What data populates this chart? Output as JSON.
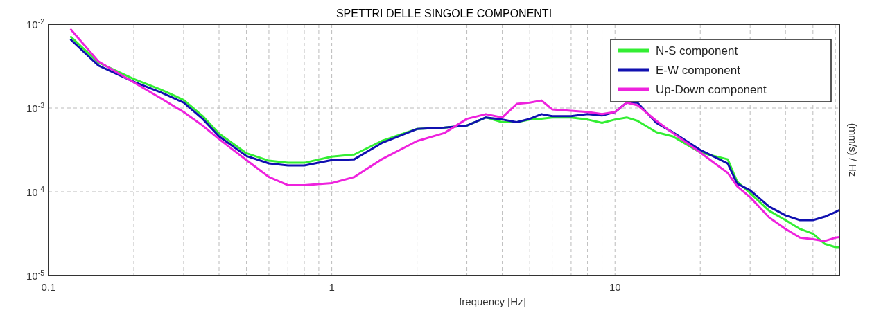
{
  "chart_data": {
    "type": "line",
    "title": "SPETTRI DELLE SINGOLE COMPONENTI",
    "xlabel": "frequency [Hz]",
    "y2label": "(mm/s) / Hz",
    "log": "xy",
    "grid": true,
    "legend": "top right",
    "line_style": "solid",
    "marker": "none",
    "x": [
      0.12,
      0.15,
      0.2,
      0.25,
      0.3,
      0.35,
      0.4,
      0.5,
      0.6,
      0.7,
      0.8,
      1,
      1.2,
      1.5,
      2,
      2.5,
      3,
      3.5,
      4,
      4.5,
      5,
      5.5,
      6,
      7,
      8,
      9,
      10,
      11,
      12,
      14,
      16,
      20,
      25,
      27,
      30,
      35,
      40,
      45,
      50,
      55,
      60,
      62
    ],
    "xlim": [
      0.1,
      62
    ],
    "xticks": [
      0.1,
      {
        "value": 0.2,
        "label": null
      },
      {
        "value": 0.3,
        "label": null
      },
      {
        "value": 0.4,
        "label": null
      },
      {
        "value": 0.5,
        "label": null
      },
      {
        "value": 0.6,
        "label": null
      },
      {
        "value": 0.7,
        "label": null
      },
      {
        "value": 0.8,
        "label": null
      },
      {
        "value": 0.9,
        "label": null
      },
      1,
      {
        "value": 2,
        "label": null
      },
      {
        "value": 3,
        "label": null
      },
      {
        "value": 4,
        "label": null
      },
      {
        "value": 5,
        "label": null
      },
      {
        "value": 6,
        "label": null
      },
      {
        "value": 7,
        "label": null
      },
      {
        "value": 8,
        "label": null
      },
      {
        "value": 9,
        "label": null
      },
      10,
      {
        "value": 20,
        "label": null
      },
      {
        "value": 30,
        "label": null
      },
      {
        "value": 40,
        "label": null
      },
      {
        "value": 50,
        "label": null
      },
      {
        "value": 60,
        "label": null
      }
    ],
    "ylim": [
      1e-05,
      0.01
    ],
    "yticks": [
      {
        "value": 1e-05,
        "label": "10$^{-5}$"
      },
      {
        "value": 0.0001,
        "label": "10$^{-4}$"
      },
      {
        "value": 0.001,
        "label": "10$^{-3}$"
      },
      {
        "value": 0.01,
        "label": "10$^{-2}$"
      }
    ],
    "series": [
      {
        "name": "N-S component",
        "color": "#33ee33",
        "values": [
          0.00704,
          0.00348,
          0.00222,
          0.00165,
          0.00125,
          0.000802,
          0.000495,
          0.000288,
          0.000235,
          0.000222,
          0.000222,
          0.000263,
          0.000278,
          0.000403,
          0.000562,
          0.000583,
          0.000617,
          0.000771,
          0.000677,
          0.000677,
          0.000729,
          0.000743,
          0.000771,
          0.000771,
          0.000729,
          0.000665,
          0.000729,
          0.000771,
          0.000703,
          0.000513,
          0.000458,
          0.000294,
          0.000244,
          0.000132,
          9.64e-05,
          5.94e-05,
          4.58e-05,
          3.6e-05,
          3.16e-05,
          2.39e-05,
          2.18e-05,
          2.18e-05
        ]
      },
      {
        "name": "E-W component",
        "color": "#1010b0",
        "values": [
          0.00652,
          0.00322,
          0.00206,
          0.00153,
          0.00116,
          0.000743,
          0.000458,
          0.000267,
          0.000218,
          0.000206,
          0.000206,
          0.000239,
          0.000244,
          0.000381,
          0.000562,
          0.000583,
          0.000617,
          0.000771,
          0.000729,
          0.000677,
          0.000743,
          0.000845,
          0.0008,
          0.0008,
          0.000845,
          0.000815,
          0.000895,
          0.00116,
          0.00116,
          0.000665,
          0.000513,
          0.000316,
          0.000218,
          0.000125,
          0.000104,
          6.65e-05,
          5.22e-05,
          4.58e-05,
          4.58e-05,
          5.04e-05,
          5.73e-05,
          6.05e-05
        ]
      },
      {
        "name": "Up-Down component",
        "color": "#ee22dd",
        "values": [
          0.00862,
          0.0036,
          0.00202,
          0.0013,
          0.000895,
          0.000617,
          0.000426,
          0.000239,
          0.00015,
          0.00012,
          0.00012,
          0.000127,
          0.00015,
          0.000244,
          0.000403,
          0.000503,
          0.000743,
          0.000845,
          0.000771,
          0.00112,
          0.00116,
          0.00123,
          0.000964,
          0.000928,
          0.000895,
          0.000845,
          0.000895,
          0.00116,
          0.00108,
          0.000703,
          0.000503,
          0.000294,
          0.000168,
          0.000116,
          8.61e-05,
          4.94e-05,
          3.6e-05,
          2.83e-05,
          2.72e-05,
          2.58e-05,
          2.83e-05,
          2.88e-05
        ]
      }
    ]
  }
}
